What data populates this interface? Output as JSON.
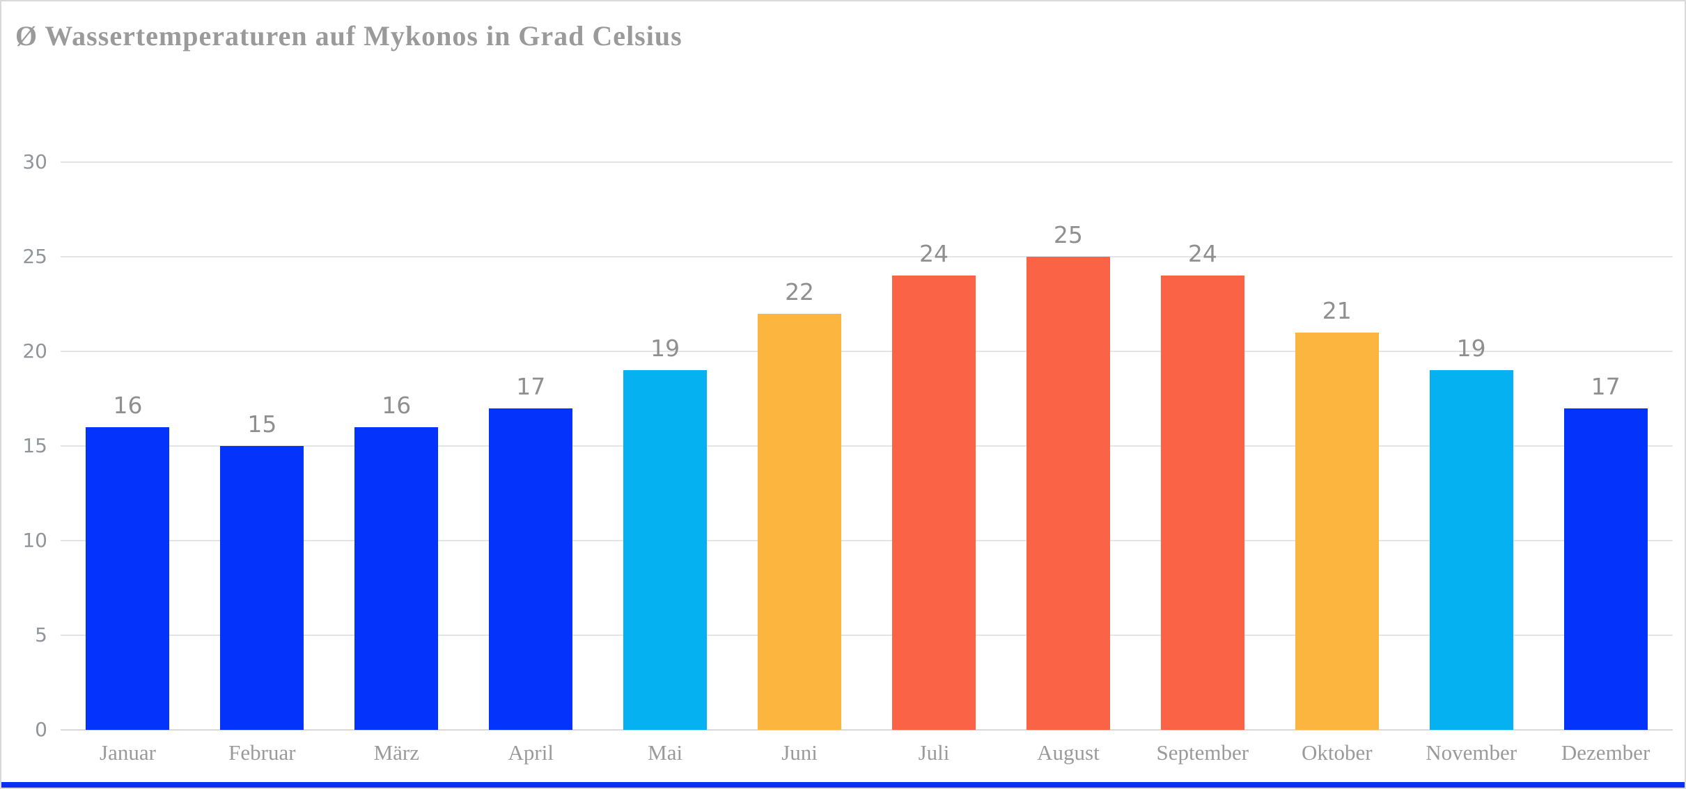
{
  "page": {
    "background": "#ffffff",
    "border_color": "#d9d9d9"
  },
  "header": {
    "title": "Ø Wassertemperaturen auf Mykonos in Grad Celsius",
    "title_color": "#9a9a9a"
  },
  "chart_data": {
    "type": "bar",
    "title": "Ø Wassertemperaturen auf Mykonos in Grad Celsius",
    "categories": [
      "Januar",
      "Februar",
      "März",
      "April",
      "Mai",
      "Juni",
      "Juli",
      "August",
      "September",
      "Oktober",
      "November",
      "Dezember"
    ],
    "values": [
      16,
      15,
      16,
      17,
      19,
      22,
      24,
      25,
      24,
      21,
      19,
      17
    ],
    "bar_colors": [
      "#0434fc",
      "#0434fc",
      "#0434fc",
      "#0434fc",
      "#05b1f0",
      "#fcb53e",
      "#fb6347",
      "#fb6347",
      "#fb6347",
      "#fcb53e",
      "#05b1f0",
      "#0434fc"
    ],
    "value_label_position": "above-bar",
    "xlabel": "",
    "ylabel": "",
    "ylim": [
      0,
      30
    ],
    "yticks": [
      0,
      5,
      10,
      15,
      20,
      25,
      30
    ],
    "grid": "horizontal",
    "legend": "none",
    "colors": {
      "blue": "#0434fc",
      "cyan": "#05b1f0",
      "orange": "#fcb53e",
      "tomato": "#fb6347",
      "gridline": "#e4e4e4",
      "axis_text": "#919599",
      "value_label_text": "#8f8f8f",
      "month_label_text": "#9a9a9a"
    }
  },
  "footer": {
    "accent_color": "#0b2ff5"
  }
}
